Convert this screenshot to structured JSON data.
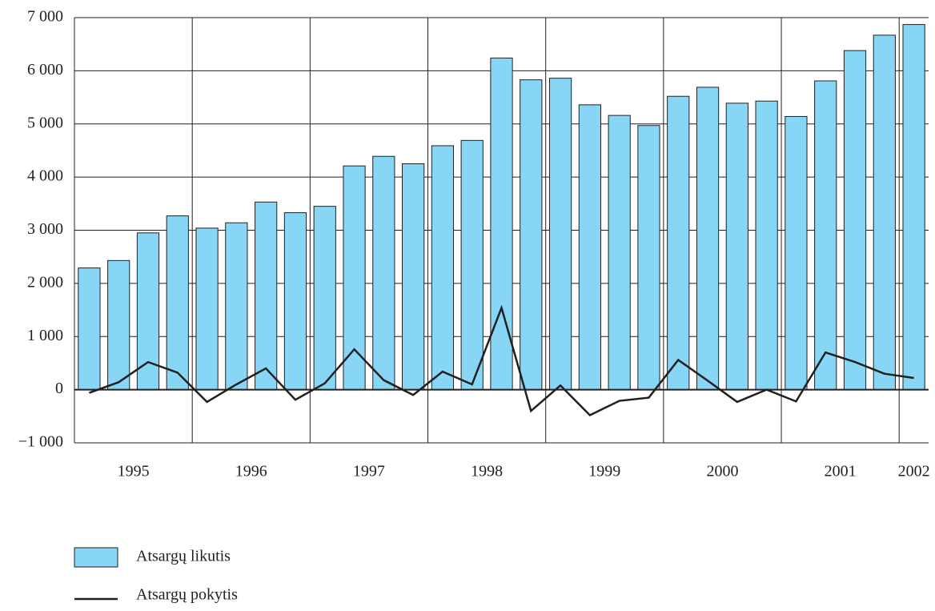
{
  "chart_data": {
    "type": "bar_line",
    "categories": [
      "1995",
      null,
      null,
      null,
      "1996",
      null,
      null,
      null,
      "1997",
      null,
      null,
      null,
      "1998",
      null,
      null,
      null,
      "1999",
      null,
      null,
      null,
      "2000",
      null,
      null,
      null,
      "2001",
      null,
      null,
      null,
      "2002"
    ],
    "series": [
      {
        "name": "Atsargų likutis",
        "type": "bar",
        "color": "#87d6f6",
        "values": [
          2290,
          2430,
          2950,
          3270,
          3040,
          3140,
          3530,
          3330,
          3450,
          4210,
          4390,
          4250,
          4590,
          4690,
          6240,
          5830,
          5860,
          5360,
          5160,
          4970,
          5520,
          5690,
          5390,
          5430,
          5140,
          5810,
          6380,
          6670,
          6870
        ]
      },
      {
        "name": "Atsargų pokytis",
        "type": "line",
        "color": "#231f20",
        "values": [
          -60,
          140,
          520,
          320,
          -230,
          100,
          400,
          -190,
          120,
          760,
          180,
          -100,
          340,
          100,
          1540,
          -400,
          80,
          -480,
          -210,
          -150,
          560,
          170,
          -230,
          0,
          -220,
          700,
          520,
          300,
          220
        ]
      }
    ],
    "ylim": [
      -1000,
      7000
    ],
    "yticks": [
      {
        "value": -1000,
        "label": "−1 000"
      },
      0,
      {
        "value": 1000,
        "label": "1 000"
      },
      {
        "value": 2000,
        "label": "2 000"
      },
      {
        "value": 3000,
        "label": "3 000"
      },
      {
        "value": 4000,
        "label": "4 000"
      },
      {
        "value": 5000,
        "label": "5 000"
      },
      {
        "value": 6000,
        "label": "6 000"
      },
      {
        "value": 7000,
        "label": "7 000"
      }
    ],
    "grid": true
  }
}
